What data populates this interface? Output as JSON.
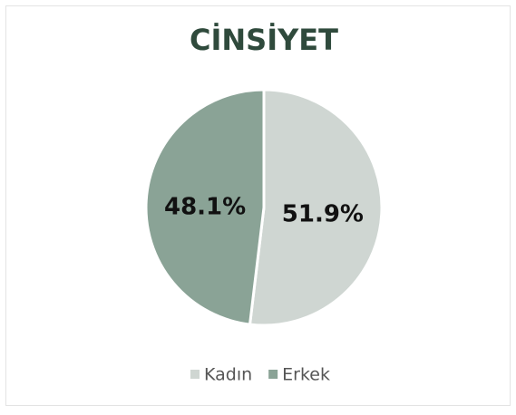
{
  "chart_data": {
    "type": "pie",
    "title": "CİNSİYET",
    "categories": [
      "Kadın",
      "Erkek"
    ],
    "values": [
      51.9,
      48.1
    ],
    "value_labels": [
      "51.9%",
      "48.1%"
    ],
    "colors": [
      "#cfd6d2",
      "#8aa396"
    ],
    "legend": "bottom"
  }
}
